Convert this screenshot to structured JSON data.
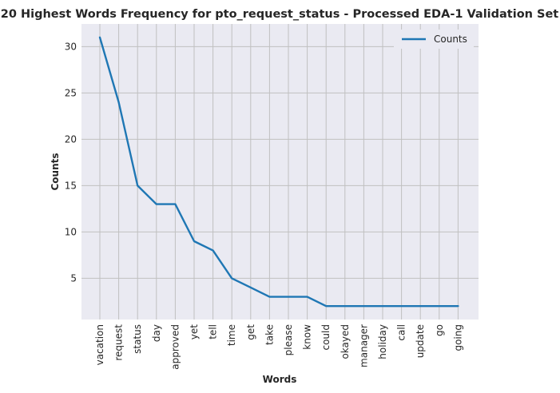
{
  "chart_data": {
    "type": "line",
    "title": "20 Highest Words Frequency for pto_request_status - Processed EDA-1 Validation Set",
    "xlabel": "Words",
    "ylabel": "Counts",
    "categories": [
      "vacation",
      "request",
      "status",
      "day",
      "approved",
      "yet",
      "tell",
      "time",
      "get",
      "take",
      "please",
      "know",
      "could",
      "okayed",
      "manager",
      "holiday",
      "call",
      "update",
      "go",
      "going"
    ],
    "series": [
      {
        "name": "Counts",
        "values": [
          31,
          24,
          15,
          13,
          13,
          9,
          8,
          5,
          4,
          3,
          3,
          3,
          2,
          2,
          2,
          2,
          2,
          2,
          2,
          2
        ],
        "color": "#1f77b4"
      }
    ],
    "yticks": [
      5,
      10,
      15,
      20,
      25,
      30
    ],
    "ylim": [
      0.55,
      32.45
    ],
    "grid": true,
    "legend_position": "top-right",
    "background_color": "#eaeaf2",
    "grid_color": "#c0c0c0"
  }
}
